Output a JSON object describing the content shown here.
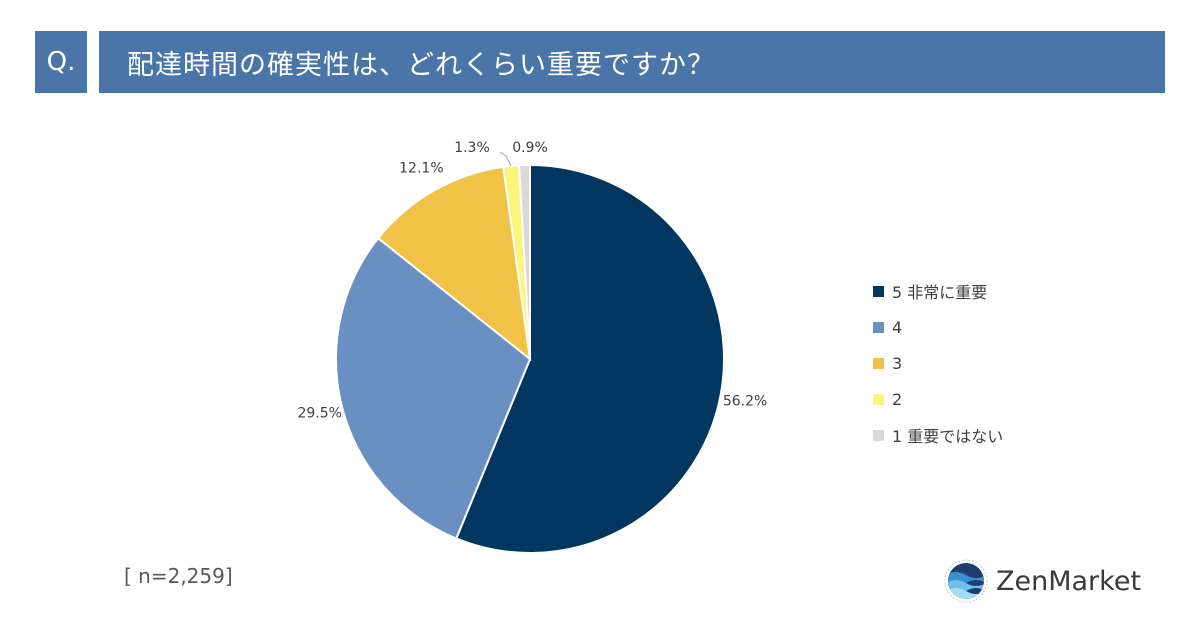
{
  "header": {
    "q_label": "Q.",
    "title": "配達時間の確実性は、どれくらい重要ですか？",
    "bar_color": "#4a75a8"
  },
  "chart_data": {
    "type": "pie",
    "title": "配達時間の確実性は、どれくらい重要ですか？",
    "slices": [
      {
        "name": "5 非常に重要",
        "value": 56.2,
        "label": "56.2%",
        "color": "#003660"
      },
      {
        "name": "4",
        "value": 29.5,
        "label": "29.5%",
        "color": "#6a8fc2"
      },
      {
        "name": "3",
        "value": 12.1,
        "label": "12.1%",
        "color": "#f0c346"
      },
      {
        "name": "2",
        "value": 1.3,
        "label": "1.3%",
        "color": "#fbf57a"
      },
      {
        "name": "1 重要ではない",
        "value": 0.9,
        "label": "0.9%",
        "color": "#d9d9d9"
      }
    ],
    "legend_position": "right"
  },
  "footer": {
    "sample_size": "[ n=2,259]"
  },
  "brand": {
    "name": "ZenMarket",
    "logo_icon": "wave-globe-icon"
  }
}
